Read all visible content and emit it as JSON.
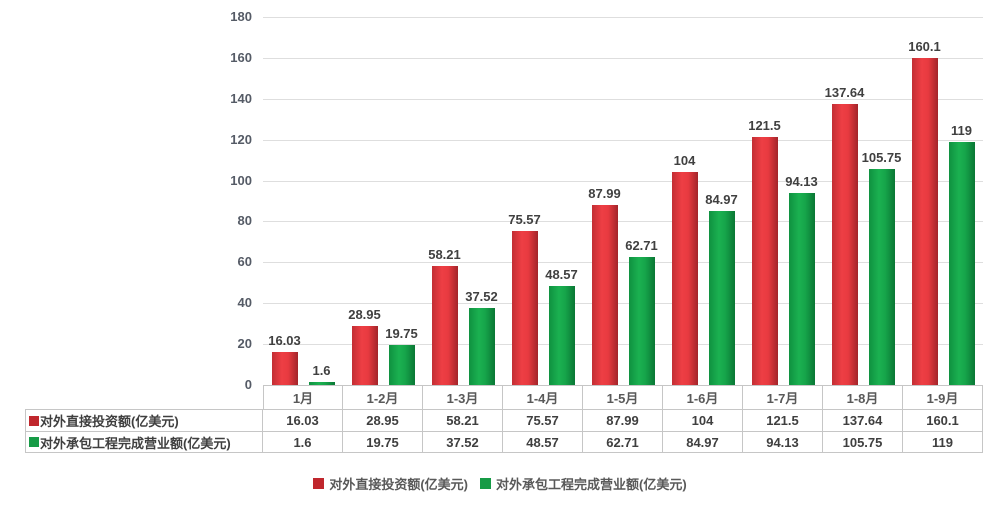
{
  "chart_data": {
    "type": "bar",
    "title": "",
    "categories": [
      "1月",
      "1-2月",
      "1-3月",
      "1-4月",
      "1-5月",
      "1-6月",
      "1-7月",
      "1-8月",
      "1-9月"
    ],
    "series": [
      {
        "name": "对外直接投资额(亿美元)",
        "color": "#c0272d",
        "values": [
          16.03,
          28.95,
          58.21,
          75.57,
          87.99,
          104,
          121.5,
          137.64,
          160.1
        ]
      },
      {
        "name": "对外承包工程完成营业额(亿美元)",
        "color": "#169b46",
        "values": [
          1.6,
          19.75,
          37.52,
          48.57,
          62.71,
          84.97,
          94.13,
          105.75,
          119
        ]
      }
    ],
    "ylim": [
      0,
      180
    ],
    "ytick_step": 20,
    "yticks": [
      0,
      20,
      40,
      60,
      80,
      100,
      120,
      140,
      160,
      180
    ],
    "grid": true,
    "legend_position": "bottom",
    "data_table_shown": true
  },
  "colors": {
    "bar_red": "#e2363c",
    "bar_green": "#14a148",
    "gridline": "#dedede",
    "table_border": "#c6c6c6",
    "axis_text": "#555b66",
    "label_text": "#404040"
  }
}
